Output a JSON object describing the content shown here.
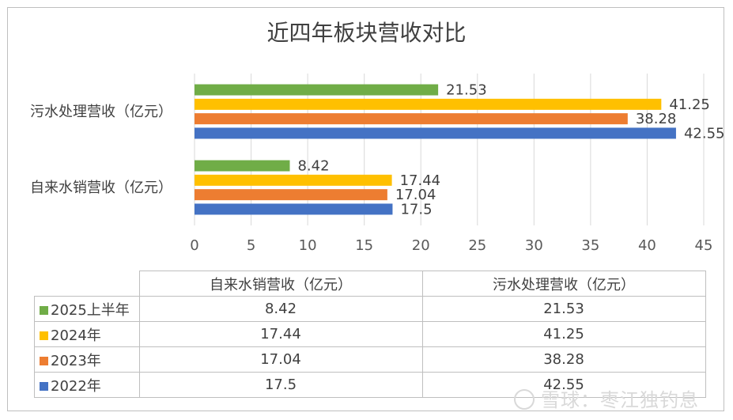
{
  "chart_data": {
    "type": "bar",
    "orientation": "horizontal",
    "title": "近四年板块营收对比",
    "categories": [
      "自来水销营收（亿元）",
      "污水处理营收（亿元）"
    ],
    "series": [
      {
        "name": "2025上半年",
        "color": "#70ad47",
        "values": [
          8.42,
          21.53
        ]
      },
      {
        "name": "2024年",
        "color": "#ffc000",
        "values": [
          17.44,
          41.25
        ]
      },
      {
        "name": "2023年",
        "color": "#ed7d31",
        "values": [
          17.04,
          38.28
        ]
      },
      {
        "name": "2022年",
        "color": "#4472c4",
        "values": [
          17.5,
          42.55
        ]
      }
    ],
    "xlim": [
      0,
      45
    ],
    "xticks": [
      0,
      5,
      10,
      15,
      20,
      25,
      30,
      35,
      40,
      45
    ],
    "grid": true,
    "legend": "data-table"
  },
  "table": {
    "columns": [
      "自来水销营收（亿元）",
      "污水处理营收（亿元）"
    ],
    "rows": [
      {
        "label": "2025上半年",
        "color": "#70ad47",
        "values": [
          "8.42",
          "21.53"
        ]
      },
      {
        "label": "2024年",
        "color": "#ffc000",
        "values": [
          "17.44",
          "41.25"
        ]
      },
      {
        "label": "2023年",
        "color": "#ed7d31",
        "values": [
          "17.04",
          "38.28"
        ]
      },
      {
        "label": "2022年",
        "color": "#4472c4",
        "values": [
          "17.5",
          "42.55"
        ]
      }
    ]
  },
  "watermark": "雪球：枣江独钓息"
}
